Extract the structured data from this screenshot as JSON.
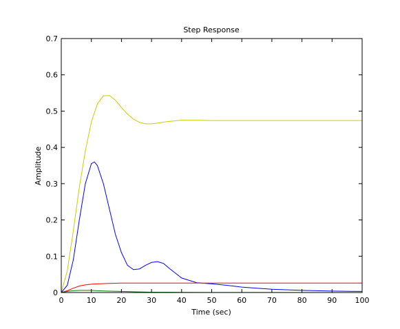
{
  "chart_data": {
    "type": "line",
    "title": "Step Response",
    "xlabel": "Time (sec)",
    "ylabel": "Amplitude",
    "xlim": [
      0,
      100
    ],
    "ylim": [
      0,
      0.7
    ],
    "x_ticks": [
      0,
      10,
      20,
      30,
      40,
      50,
      60,
      70,
      80,
      90,
      100
    ],
    "y_ticks": [
      0,
      0.1,
      0.2,
      0.3,
      0.4,
      0.5,
      0.6,
      0.7
    ],
    "x_tick_labels": [
      "0",
      "10",
      "20",
      "30",
      "40",
      "50",
      "60",
      "70",
      "80",
      "90",
      "100"
    ],
    "y_tick_labels": [
      "0",
      "0.1",
      "0.2",
      "0.3",
      "0.4",
      "0.5",
      "0.6",
      "0.7"
    ],
    "grid": false,
    "series": [
      {
        "color": "#cccc00",
        "x": [
          0,
          2,
          4,
          6,
          8,
          10,
          12,
          14,
          16,
          18,
          20,
          22,
          24,
          26,
          28,
          30,
          32,
          35,
          40,
          45,
          50,
          60,
          70,
          80,
          90,
          100
        ],
        "y": [
          0,
          0.06,
          0.17,
          0.29,
          0.39,
          0.47,
          0.52,
          0.542,
          0.543,
          0.53,
          0.51,
          0.492,
          0.478,
          0.469,
          0.465,
          0.465,
          0.467,
          0.471,
          0.475,
          0.475,
          0.474,
          0.474,
          0.474,
          0.474,
          0.474,
          0.474
        ]
      },
      {
        "color": "#0000ff",
        "x": [
          0,
          2,
          4,
          6,
          8,
          10,
          11,
          12,
          14,
          16,
          18,
          20,
          22,
          24,
          26,
          28,
          30,
          32,
          34,
          36,
          40,
          45,
          50,
          55,
          60,
          70,
          80,
          90,
          100
        ],
        "y": [
          0,
          0.02,
          0.09,
          0.2,
          0.3,
          0.355,
          0.36,
          0.35,
          0.3,
          0.23,
          0.16,
          0.11,
          0.075,
          0.063,
          0.065,
          0.075,
          0.083,
          0.085,
          0.08,
          0.066,
          0.04,
          0.027,
          0.024,
          0.02,
          0.015,
          0.009,
          0.006,
          0.004,
          0.003
        ]
      },
      {
        "color": "#ff0000",
        "x": [
          0,
          2,
          4,
          6,
          8,
          10,
          12,
          15,
          20,
          30,
          50,
          100
        ],
        "y": [
          0,
          0.005,
          0.012,
          0.018,
          0.021,
          0.023,
          0.024,
          0.025,
          0.026,
          0.026,
          0.026,
          0.026
        ]
      },
      {
        "color": "#008000",
        "x": [
          0,
          2,
          4,
          6,
          8,
          10,
          12,
          15,
          20,
          25,
          30,
          40,
          50,
          100
        ],
        "y": [
          0,
          0.003,
          0.005,
          0.006,
          0.006,
          0.006,
          0.005,
          0.004,
          0.003,
          0.002,
          0.001,
          0.0005,
          0.0002,
          0
        ]
      }
    ]
  }
}
